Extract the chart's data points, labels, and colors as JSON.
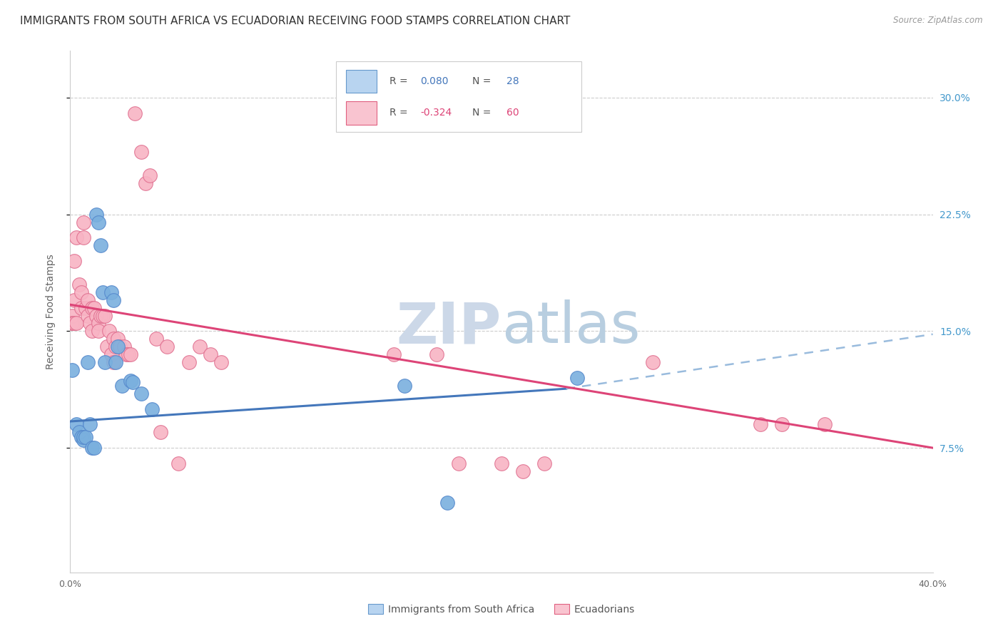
{
  "title": "IMMIGRANTS FROM SOUTH AFRICA VS ECUADORIAN RECEIVING FOOD STAMPS CORRELATION CHART",
  "source": "Source: ZipAtlas.com",
  "ylabel": "Receiving Food Stamps",
  "yticks": [
    "7.5%",
    "15.0%",
    "22.5%",
    "30.0%"
  ],
  "ytick_vals": [
    0.075,
    0.15,
    0.225,
    0.3
  ],
  "xlim": [
    0.0,
    0.4
  ],
  "ylim": [
    -0.005,
    0.33
  ],
  "legend_label_blue": "Immigrants from South Africa",
  "legend_label_pink": "Ecuadorians",
  "blue_fill_color": "#b8d4f0",
  "blue_edge_color": "#6699cc",
  "pink_fill_color": "#f9c4d0",
  "pink_edge_color": "#e06080",
  "blue_dot_color": "#7ab0de",
  "blue_dot_edge": "#5588cc",
  "pink_dot_color": "#f8b4c4",
  "pink_dot_edge": "#e07090",
  "blue_line_color": "#4477bb",
  "pink_line_color": "#dd4477",
  "blue_dash_color": "#99bbdd",
  "watermark_color": "#ccd8e8",
  "title_fontsize": 11,
  "axis_fontsize": 9,
  "legend_fontsize": 10,
  "blue_scatter": [
    [
      0.001,
      0.125
    ],
    [
      0.003,
      0.09
    ],
    [
      0.004,
      0.085
    ],
    [
      0.005,
      0.082
    ],
    [
      0.006,
      0.08
    ],
    [
      0.006,
      0.082
    ],
    [
      0.007,
      0.082
    ],
    [
      0.008,
      0.13
    ],
    [
      0.009,
      0.09
    ],
    [
      0.01,
      0.075
    ],
    [
      0.011,
      0.075
    ],
    [
      0.012,
      0.225
    ],
    [
      0.013,
      0.22
    ],
    [
      0.014,
      0.205
    ],
    [
      0.015,
      0.175
    ],
    [
      0.016,
      0.13
    ],
    [
      0.019,
      0.175
    ],
    [
      0.02,
      0.17
    ],
    [
      0.021,
      0.13
    ],
    [
      0.022,
      0.14
    ],
    [
      0.024,
      0.115
    ],
    [
      0.028,
      0.118
    ],
    [
      0.029,
      0.117
    ],
    [
      0.033,
      0.11
    ],
    [
      0.038,
      0.1
    ],
    [
      0.155,
      0.115
    ],
    [
      0.175,
      0.04
    ],
    [
      0.235,
      0.12
    ]
  ],
  "pink_scatter": [
    [
      0.001,
      0.155
    ],
    [
      0.001,
      0.16
    ],
    [
      0.001,
      0.155
    ],
    [
      0.002,
      0.17
    ],
    [
      0.002,
      0.195
    ],
    [
      0.002,
      0.155
    ],
    [
      0.003,
      0.21
    ],
    [
      0.003,
      0.155
    ],
    [
      0.004,
      0.18
    ],
    [
      0.005,
      0.175
    ],
    [
      0.005,
      0.165
    ],
    [
      0.006,
      0.22
    ],
    [
      0.006,
      0.21
    ],
    [
      0.007,
      0.165
    ],
    [
      0.008,
      0.17
    ],
    [
      0.008,
      0.16
    ],
    [
      0.009,
      0.155
    ],
    [
      0.01,
      0.165
    ],
    [
      0.01,
      0.15
    ],
    [
      0.011,
      0.165
    ],
    [
      0.012,
      0.16
    ],
    [
      0.013,
      0.155
    ],
    [
      0.013,
      0.15
    ],
    [
      0.014,
      0.16
    ],
    [
      0.015,
      0.16
    ],
    [
      0.016,
      0.16
    ],
    [
      0.017,
      0.14
    ],
    [
      0.018,
      0.15
    ],
    [
      0.019,
      0.135
    ],
    [
      0.02,
      0.145
    ],
    [
      0.02,
      0.13
    ],
    [
      0.021,
      0.14
    ],
    [
      0.022,
      0.145
    ],
    [
      0.023,
      0.14
    ],
    [
      0.025,
      0.14
    ],
    [
      0.026,
      0.135
    ],
    [
      0.027,
      0.135
    ],
    [
      0.028,
      0.135
    ],
    [
      0.03,
      0.29
    ],
    [
      0.033,
      0.265
    ],
    [
      0.035,
      0.245
    ],
    [
      0.037,
      0.25
    ],
    [
      0.04,
      0.145
    ],
    [
      0.042,
      0.085
    ],
    [
      0.045,
      0.14
    ],
    [
      0.05,
      0.065
    ],
    [
      0.055,
      0.13
    ],
    [
      0.06,
      0.14
    ],
    [
      0.065,
      0.135
    ],
    [
      0.07,
      0.13
    ],
    [
      0.15,
      0.135
    ],
    [
      0.17,
      0.135
    ],
    [
      0.18,
      0.065
    ],
    [
      0.2,
      0.065
    ],
    [
      0.21,
      0.06
    ],
    [
      0.22,
      0.065
    ],
    [
      0.27,
      0.13
    ],
    [
      0.32,
      0.09
    ],
    [
      0.33,
      0.09
    ],
    [
      0.35,
      0.09
    ]
  ],
  "blue_line": {
    "x0": 0.0,
    "y0": 0.092,
    "x1": 0.23,
    "y1": 0.113
  },
  "blue_dash_line": {
    "x0": 0.23,
    "y0": 0.113,
    "x1": 0.4,
    "y1": 0.148
  },
  "pink_line": {
    "x0": 0.0,
    "y0": 0.167,
    "x1": 0.4,
    "y1": 0.075
  }
}
